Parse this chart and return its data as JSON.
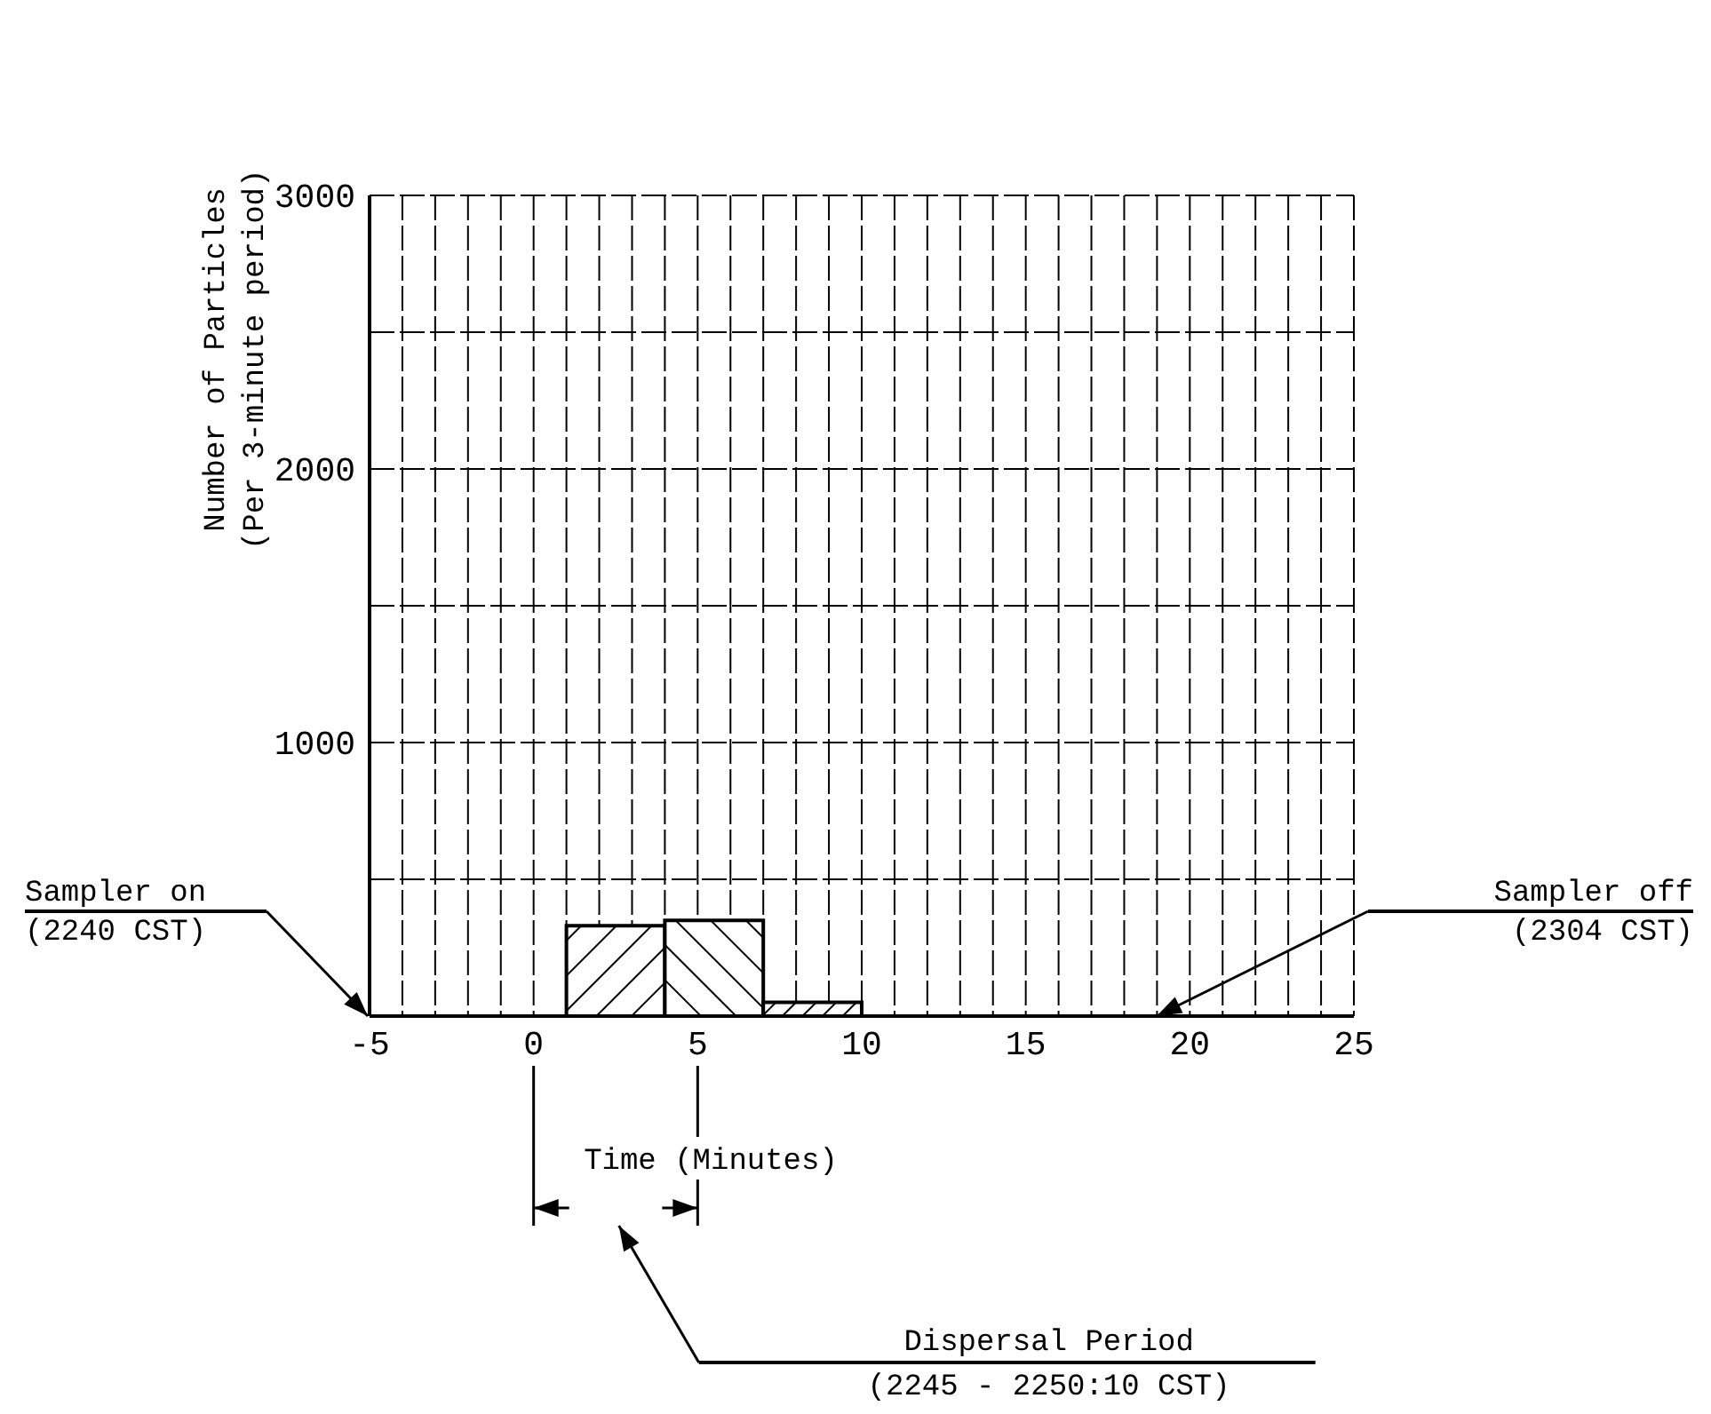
{
  "chart_data": {
    "type": "histogram",
    "bins": [
      1,
      4,
      7,
      10
    ],
    "values": [
      330,
      350,
      50
    ],
    "color": "#000000",
    "xlabel": "Time (Minutes)",
    "ylabel": "Number of Particles (Per 3-minute period)",
    "xlim": [
      -5,
      25
    ],
    "xticks": [
      -5,
      {
        "value": -4,
        "label": null
      },
      {
        "value": -3,
        "label": null
      },
      {
        "value": -2,
        "label": null
      },
      {
        "value": -1,
        "label": null
      },
      0,
      {
        "value": 1,
        "label": null
      },
      {
        "value": 2,
        "label": null
      },
      {
        "value": 3,
        "label": null
      },
      {
        "value": 4,
        "label": null
      },
      5,
      {
        "value": 6,
        "label": null
      },
      {
        "value": 7,
        "label": null
      },
      {
        "value": 8,
        "label": null
      },
      {
        "value": 9,
        "label": null
      },
      10,
      {
        "value": 11,
        "label": null
      },
      {
        "value": 12,
        "label": null
      },
      {
        "value": 13,
        "label": null
      },
      {
        "value": 14,
        "label": null
      },
      15,
      {
        "value": 16,
        "label": null
      },
      {
        "value": 17,
        "label": null
      },
      {
        "value": 18,
        "label": null
      },
      {
        "value": 19,
        "label": null
      },
      20,
      {
        "value": 21,
        "label": null
      },
      {
        "value": 22,
        "label": null
      },
      {
        "value": 23,
        "label": null
      },
      {
        "value": 24,
        "label": null
      },
      25
    ],
    "ylim": [
      0,
      3000
    ],
    "yticks": [
      {
        "value": 0,
        "label": null
      },
      {
        "value": 500,
        "label": null
      },
      1000,
      {
        "value": 1500,
        "label": null
      },
      2000,
      {
        "value": 2500,
        "label": null
      },
      3000
    ],
    "grid": true,
    "annotations": [
      "Sampler on (2240 CST)",
      "Sampler off (2304 CST)",
      "Dispersal Period (2245 - 2250:10 CST)"
    ]
  }
}
